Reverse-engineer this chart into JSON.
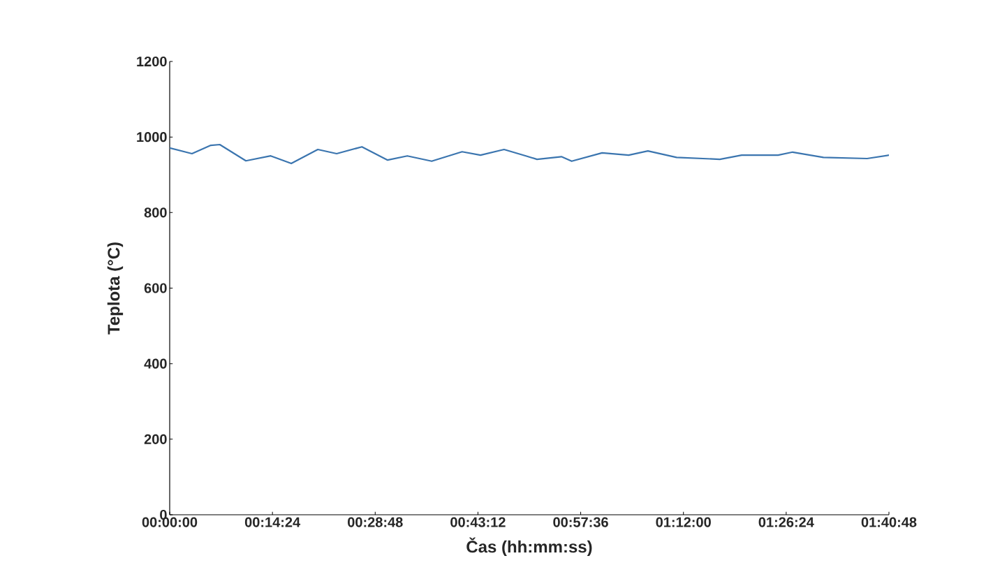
{
  "chart_data": {
    "type": "line",
    "xlabel": "Čas (hh:mm:ss)",
    "ylabel": "Teplota (°C)",
    "xlim": [
      0,
      1.68
    ],
    "ylim": [
      0,
      1200
    ],
    "xticks": [
      {
        "value": 0,
        "label": "00:00:00"
      },
      {
        "value": 0.24,
        "label": "00:14:24"
      },
      {
        "value": 0.48,
        "label": "00:28:48"
      },
      {
        "value": 0.72,
        "label": "00:43:12"
      },
      {
        "value": 0.96,
        "label": "00:57:36"
      },
      {
        "value": 1.2,
        "label": "01:12:00"
      },
      {
        "value": 1.44,
        "label": "01:26:24"
      },
      {
        "value": 1.68,
        "label": "01:40:48"
      }
    ],
    "yticks": [
      0,
      200,
      400,
      600,
      800,
      1000,
      1200
    ],
    "x": [
      0,
      0.052,
      0.096,
      0.117,
      0.178,
      0.236,
      0.284,
      0.346,
      0.39,
      0.449,
      0.509,
      0.555,
      0.612,
      0.683,
      0.726,
      0.781,
      0.832,
      0.858,
      0.915,
      0.939,
      1.01,
      1.072,
      1.117,
      1.184,
      1.285,
      1.336,
      1.421,
      1.455,
      1.527,
      1.629,
      1.68
    ],
    "series": [
      {
        "color": "#3b75af",
        "values": [
          971,
          956,
          978,
          980,
          937,
          950,
          930,
          967,
          956,
          974,
          939,
          950,
          936,
          961,
          952,
          967,
          950,
          941,
          948,
          936,
          958,
          952,
          963,
          946,
          941,
          952,
          952,
          960,
          946,
          943,
          952
        ]
      }
    ]
  }
}
